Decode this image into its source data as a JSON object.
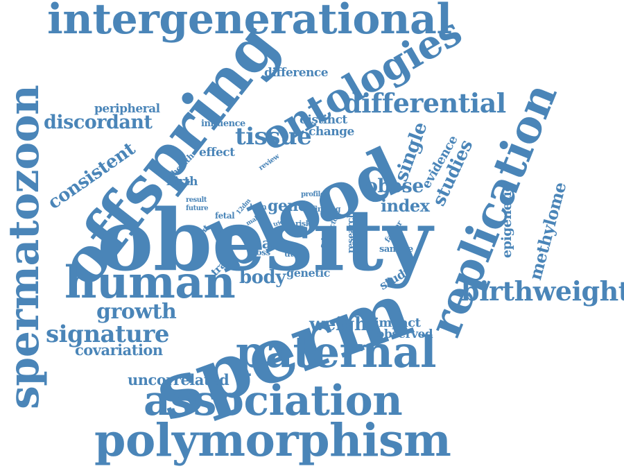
{
  "color": "#4a85b8",
  "words": [
    {
      "text": "intergenerational"
    },
    {
      "text": "spermatozoon"
    },
    {
      "text": "offspring"
    },
    {
      "text": "ontologies"
    },
    {
      "text": "difference"
    },
    {
      "text": "differential"
    },
    {
      "text": "peripheral"
    },
    {
      "text": "discordant"
    },
    {
      "text": "distinct"
    },
    {
      "text": "change"
    },
    {
      "text": "tissue"
    },
    {
      "text": "consistent"
    },
    {
      "text": "health"
    },
    {
      "text": "influence"
    },
    {
      "text": "effect"
    },
    {
      "text": "review"
    },
    {
      "text": "blood"
    },
    {
      "text": "single"
    },
    {
      "text": "evidence"
    },
    {
      "text": "studies"
    },
    {
      "text": "replication"
    },
    {
      "text": "methylome"
    },
    {
      "text": "epigenetic"
    },
    {
      "text": "birth"
    },
    {
      "text": "obese"
    },
    {
      "text": "index"
    },
    {
      "text": "gene"
    },
    {
      "text": "profile"
    },
    {
      "text": "finding"
    },
    {
      "text": "result"
    },
    {
      "text": "future"
    },
    {
      "text": "fetal"
    },
    {
      "text": "12dm"
    },
    {
      "text": "lean"
    },
    {
      "text": "male"
    },
    {
      "text": "trio"
    },
    {
      "text": "risk"
    },
    {
      "text": "site"
    },
    {
      "text": "factor"
    },
    {
      "text": "research"
    },
    {
      "text": "father"
    },
    {
      "text": "cohort"
    },
    {
      "text": "trait"
    },
    {
      "text": "cross"
    },
    {
      "text": "utero"
    },
    {
      "text": "mas"
    },
    {
      "text": "sample"
    },
    {
      "text": "study"
    },
    {
      "text": "obesity"
    },
    {
      "text": "human"
    },
    {
      "text": "body"
    },
    {
      "text": "genetic"
    },
    {
      "text": "birthweight"
    },
    {
      "text": "growth"
    },
    {
      "text": "signature"
    },
    {
      "text": "covariation"
    },
    {
      "text": "sperm"
    },
    {
      "text": "weight"
    },
    {
      "text": "impact"
    },
    {
      "text": "observed"
    },
    {
      "text": "paternal"
    },
    {
      "text": "uncorrelated"
    },
    {
      "text": "association"
    },
    {
      "text": "polymorphism"
    }
  ]
}
